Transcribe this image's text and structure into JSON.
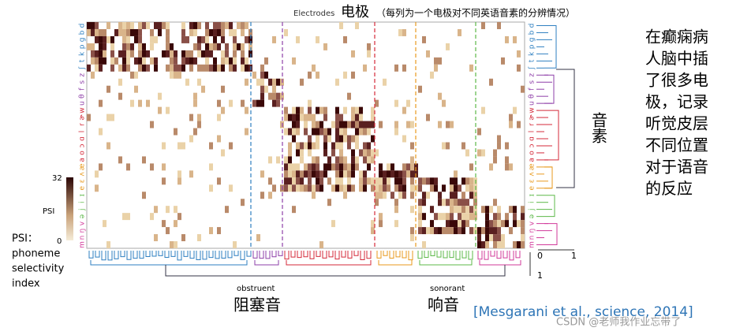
{
  "figure": {
    "title_small": "Electrodes",
    "title_big": "电极",
    "title_note": "（每列为一个电极对不同英语音素的分辨情况）",
    "colorbar": {
      "max": "32",
      "label": "PSI",
      "min": "0"
    },
    "psi_note": [
      "PSI：",
      "phoneme",
      "selectivity",
      "index"
    ],
    "phonemes": [
      "d",
      "b",
      "g",
      "p",
      "k",
      "t",
      "ʃ",
      "z",
      "s",
      "f",
      "θ",
      "u",
      "w",
      "ɚ",
      "r",
      "l",
      "ɑ",
      "ɔ",
      "o",
      "a",
      "æ",
      "ʌ",
      "ɛ",
      "e",
      "ɪ",
      "i",
      "j",
      "ə",
      "v",
      "ŋ",
      "n",
      "m"
    ],
    "dendro_axis": {
      "right_0": "0",
      "right_1": "1",
      "bottom_0": "0",
      "bottom_1": "1"
    },
    "group_labels": {
      "obstruent": "obstruent",
      "sonorant": "sonorant"
    },
    "group_labels_cn": {
      "obstruent": "阻塞音",
      "sonorant": "响音"
    },
    "phoneme_cn": "音素",
    "side_text": [
      "在癫痫病",
      "人脑中插",
      "了很多电",
      "极，记录",
      "听觉皮层",
      "不同位置",
      "对于语音",
      "的反应"
    ],
    "citation": "[Mesgarani et al., science, 2014]",
    "watermark": "CSDN @老师我作业忘带了"
  }
}
